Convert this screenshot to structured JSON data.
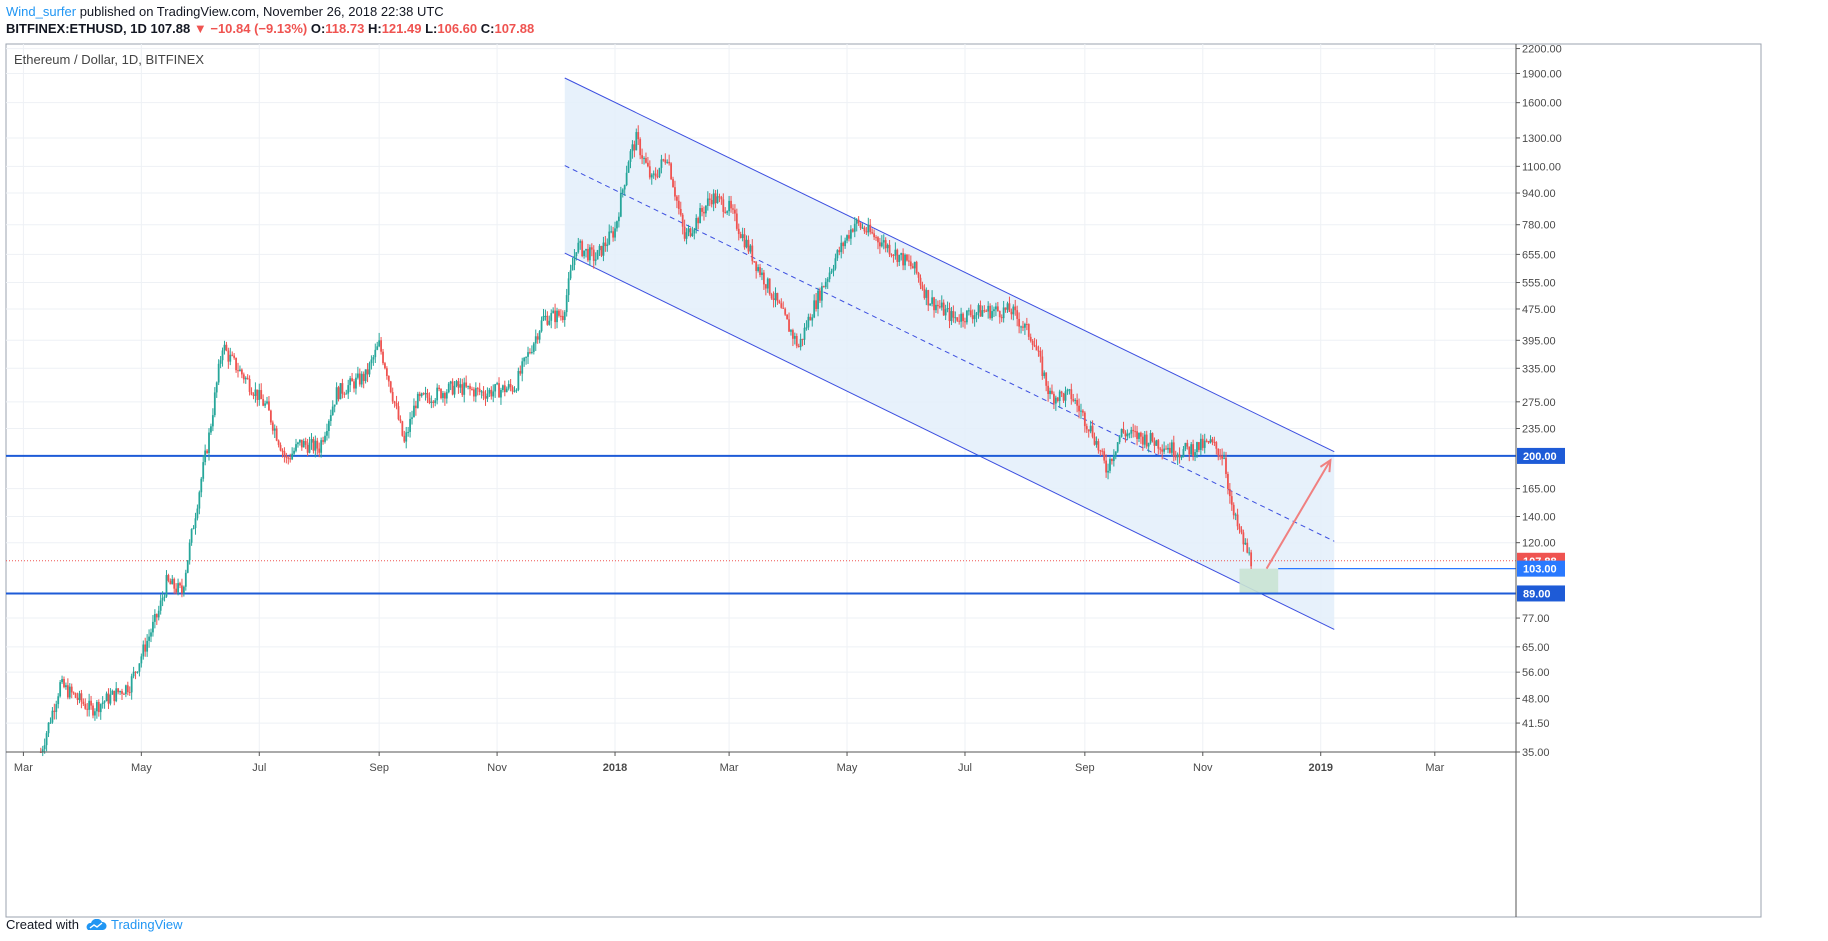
{
  "header": {
    "author": "Wind_surfer",
    "published_text": "published on TradingView.com, November 26, 2018 22:38 UTC",
    "symbol": "BITFINEX:ETHUSD, 1D",
    "last_price": "107.88",
    "change": "−10.84 (−9.13%)",
    "open_label": "O:",
    "open": "118.73",
    "high_label": "H:",
    "high": "121.49",
    "low_label": "L:",
    "low": "106.60",
    "close_label": "C:",
    "close": "107.88"
  },
  "footer": {
    "created_with": "Created with",
    "brand": "TradingView"
  },
  "colors": {
    "up": "#26a69a",
    "down": "#ef5350",
    "level_line": "#1e5bd7",
    "channel": "#3c4fe0",
    "channel_fill": "#e3eefa",
    "zone": "#c9e3d3",
    "arrow": "#f08080",
    "axis_text": "#4a4a4a",
    "grid": "#eef1f5"
  },
  "chart_data": {
    "type": "candlestick",
    "title": "Ethereum / Dollar, 1D, BITFINEX",
    "y_scale": "log",
    "y_ticks": [
      "2200.00",
      "1900.00",
      "1600.00",
      "1300.00",
      "1100.00",
      "940.00",
      "780.00",
      "655.00",
      "555.00",
      "475.00",
      "395.00",
      "335.00",
      "275.00",
      "235.00",
      "165.00",
      "140.00",
      "120.00",
      "77.00",
      "65.00",
      "56.00",
      "48.00",
      "41.50",
      "35.00"
    ],
    "x_ticks": [
      "Mar",
      "May",
      "Jul",
      "Sep",
      "Nov",
      "2018",
      "Mar",
      "May",
      "Jul",
      "Sep",
      "Nov",
      "2019",
      "Mar"
    ],
    "x_range": [
      "2017-02-20",
      "2019-04-12"
    ],
    "y_range": [
      35,
      2260
    ],
    "price_labels": [
      {
        "text": "200.00",
        "color": "#1e5bd7"
      },
      {
        "text": "107.88",
        "color": "#ef5350"
      },
      {
        "text": "103.00",
        "color": "#2979ff"
      },
      {
        "text": "89.00",
        "color": "#1e5bd7"
      }
    ],
    "horizontal_levels": [
      200,
      103,
      89
    ],
    "current_price": 107.88,
    "channel": {
      "upper": [
        {
          "date": "2017-12-06",
          "price": 1850
        },
        {
          "date": "2019-01-08",
          "price": 205
        }
      ],
      "middle": [
        {
          "date": "2017-12-06",
          "price": 1105
        },
        {
          "date": "2019-01-08",
          "price": 121
        }
      ],
      "lower": [
        {
          "date": "2017-12-06",
          "price": 660
        },
        {
          "date": "2019-01-08",
          "price": 72
        }
      ]
    },
    "target_zone": {
      "start": "2018-11-20",
      "end": "2018-12-10",
      "top": 103,
      "bottom": 89
    },
    "arrow": {
      "from": {
        "date": "2018-12-04",
        "price": 103
      },
      "to": {
        "date": "2019-01-06",
        "price": 195
      }
    },
    "price_path": [
      [
        "2017-03-10",
        35
      ],
      [
        "2017-03-20",
        52
      ],
      [
        "2017-04-05",
        45
      ],
      [
        "2017-04-25",
        52
      ],
      [
        "2017-05-10",
        80
      ],
      [
        "2017-05-14",
        95
      ],
      [
        "2017-05-22",
        90
      ],
      [
        "2017-06-01",
        175
      ],
      [
        "2017-06-05",
        225
      ],
      [
        "2017-06-12",
        385
      ],
      [
        "2017-06-15",
        360
      ],
      [
        "2017-06-25",
        310
      ],
      [
        "2017-07-05",
        265
      ],
      [
        "2017-07-15",
        195
      ],
      [
        "2017-07-22",
        215
      ],
      [
        "2017-08-01",
        210
      ],
      [
        "2017-08-10",
        290
      ],
      [
        "2017-08-25",
        320
      ],
      [
        "2017-09-01",
        385
      ],
      [
        "2017-09-05",
        330
      ],
      [
        "2017-09-14",
        215
      ],
      [
        "2017-09-20",
        275
      ],
      [
        "2017-10-10",
        300
      ],
      [
        "2017-10-25",
        290
      ],
      [
        "2017-11-10",
        300
      ],
      [
        "2017-11-25",
        450
      ],
      [
        "2017-12-05",
        460
      ],
      [
        "2017-12-12",
        690
      ],
      [
        "2017-12-22",
        640
      ],
      [
        "2018-01-01",
        760
      ],
      [
        "2018-01-08",
        1150
      ],
      [
        "2018-01-12",
        1290
      ],
      [
        "2018-01-20",
        1010
      ],
      [
        "2018-01-28",
        1180
      ],
      [
        "2018-02-06",
        720
      ],
      [
        "2018-02-20",
        920
      ],
      [
        "2018-03-01",
        860
      ],
      [
        "2018-03-15",
        620
      ],
      [
        "2018-03-25",
        500
      ],
      [
        "2018-04-06",
        380
      ],
      [
        "2018-04-12",
        460
      ],
      [
        "2018-04-25",
        640
      ],
      [
        "2018-05-05",
        790
      ],
      [
        "2018-05-20",
        700
      ],
      [
        "2018-06-05",
        600
      ],
      [
        "2018-06-12",
        505
      ],
      [
        "2018-06-25",
        450
      ],
      [
        "2018-07-10",
        470
      ],
      [
        "2018-07-25",
        470
      ],
      [
        "2018-08-05",
        400
      ],
      [
        "2018-08-14",
        285
      ],
      [
        "2018-08-25",
        285
      ],
      [
        "2018-09-05",
        230
      ],
      [
        "2018-09-12",
        185
      ],
      [
        "2018-09-20",
        230
      ],
      [
        "2018-10-05",
        220
      ],
      [
        "2018-10-20",
        205
      ],
      [
        "2018-11-05",
        215
      ],
      [
        "2018-11-12",
        200
      ],
      [
        "2018-11-16",
        145
      ],
      [
        "2018-11-22",
        120
      ],
      [
        "2018-11-26",
        108
      ]
    ]
  }
}
